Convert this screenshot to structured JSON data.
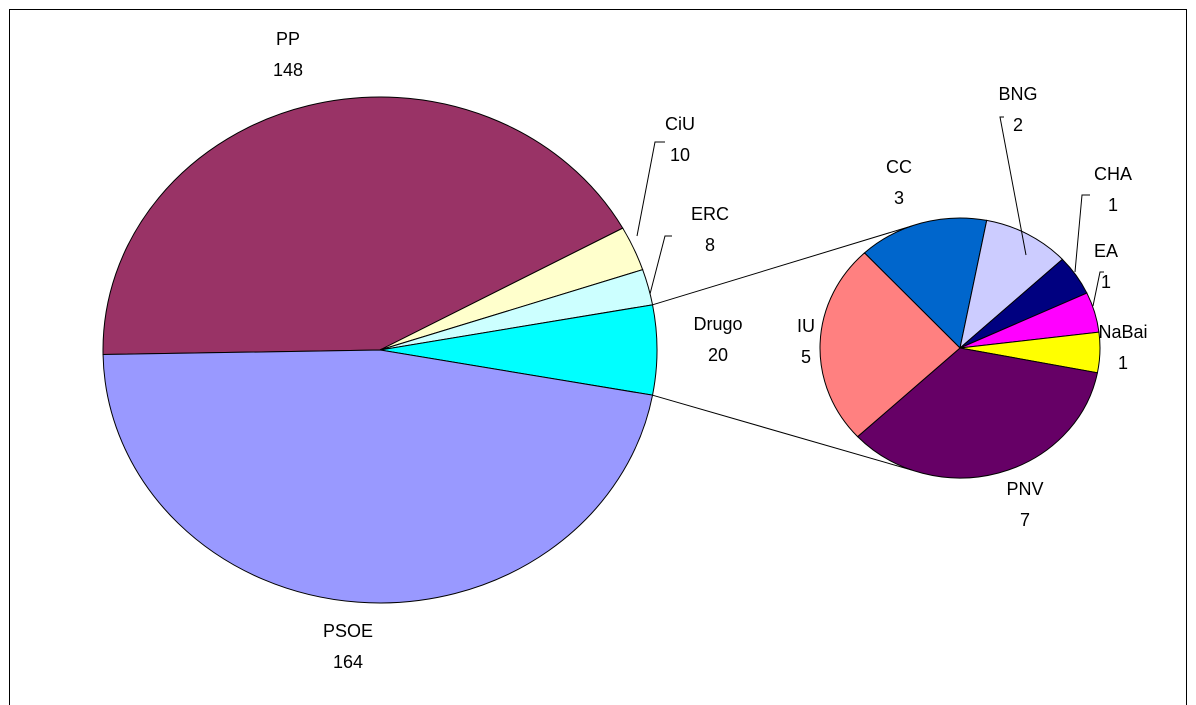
{
  "chart_data": [
    {
      "type": "pie",
      "categories": [
        "PP",
        "CiU",
        "ERC",
        "Drugo",
        "PSOE"
      ],
      "values": [
        148,
        10,
        8,
        20,
        164
      ],
      "colors": [
        "#993366",
        "#ffffcc",
        "#ccffff",
        "#00ffff",
        "#9999ff"
      ]
    },
    {
      "type": "pie",
      "categories": [
        "CC",
        "BNG",
        "CHA",
        "EA",
        "NaBai",
        "PNV",
        "IU"
      ],
      "values": [
        3,
        2,
        1,
        1,
        1,
        7,
        5
      ],
      "colors": [
        "#0066cc",
        "#ccccff",
        "#000080",
        "#ff00ff",
        "#ffff00",
        "#660066",
        "#ff8080"
      ]
    }
  ]
}
